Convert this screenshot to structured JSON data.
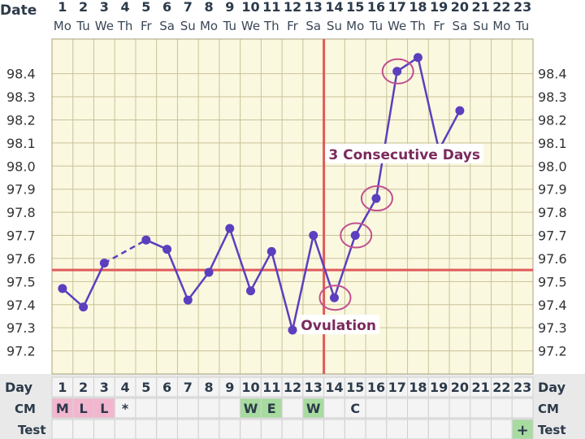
{
  "header": {
    "date_label": "Date",
    "day_label": "Day",
    "cm_label": "CM",
    "test_label": "Test"
  },
  "chart_data": {
    "type": "line",
    "title": "",
    "xlabel": "Day",
    "ylabel": "",
    "xlim": [
      1,
      23
    ],
    "ylim": [
      97.1,
      98.55
    ],
    "y_ticks": [
      97.2,
      97.3,
      97.4,
      97.5,
      97.6,
      97.7,
      97.8,
      97.9,
      98.0,
      98.1,
      98.2,
      98.3,
      98.4
    ],
    "y_tick_labels": [
      "97.2",
      "97.3",
      "97.4",
      "97.5",
      "97.6",
      "97.7",
      "97.8",
      "97.9",
      "98.0",
      "98.1",
      "98.2",
      "98.3",
      "98.4"
    ],
    "grid": true,
    "dates": [
      "1",
      "2",
      "3",
      "4",
      "5",
      "6",
      "7",
      "8",
      "9",
      "10",
      "11",
      "12",
      "13",
      "14",
      "15",
      "16",
      "17",
      "18",
      "19",
      "20",
      "21",
      "22",
      "23"
    ],
    "weekdays": [
      "Mo",
      "Tu",
      "We",
      "Th",
      "Fr",
      "Sa",
      "Su",
      "Mo",
      "Tu",
      "We",
      "Th",
      "Fr",
      "Sa",
      "Su",
      "Mo",
      "Tu",
      "We",
      "Th",
      "Fr",
      "Sa",
      "Su",
      "Mo",
      "Tu"
    ],
    "days": [
      1,
      2,
      3,
      4,
      5,
      6,
      7,
      8,
      9,
      10,
      11,
      12,
      13,
      14,
      15,
      16,
      17,
      18,
      19,
      20,
      21,
      22,
      23
    ],
    "series": [
      {
        "points": [
          {
            "day": 1,
            "temp": 97.47
          },
          {
            "day": 2,
            "temp": 97.39
          },
          {
            "day": 3,
            "temp": 97.58
          },
          {
            "day": 5,
            "temp": 97.68
          },
          {
            "day": 6,
            "temp": 97.64
          },
          {
            "day": 7,
            "temp": 97.42
          },
          {
            "day": 8,
            "temp": 97.54
          },
          {
            "day": 9,
            "temp": 97.73
          },
          {
            "day": 10,
            "temp": 97.46
          },
          {
            "day": 11,
            "temp": 97.63
          },
          {
            "day": 12,
            "temp": 97.29
          },
          {
            "day": 13,
            "temp": 97.7
          },
          {
            "day": 14,
            "temp": 97.43
          },
          {
            "day": 15,
            "temp": 97.7
          },
          {
            "day": 16,
            "temp": 97.86
          },
          {
            "day": 17,
            "temp": 98.41
          },
          {
            "day": 18,
            "temp": 98.47
          },
          {
            "day": 19,
            "temp": 98.07
          },
          {
            "day": 20,
            "temp": 98.24
          }
        ],
        "dashed_segments": [
          [
            3,
            5
          ]
        ],
        "color": "#5b3fbe"
      }
    ],
    "coverline": {
      "temp": 97.55,
      "color": "#e05a5a"
    },
    "ovulation_day": 14,
    "circled_days": [
      14,
      15,
      16,
      17
    ],
    "annotations": [
      {
        "text": "3 Consecutive Days",
        "day": 17.35,
        "temp": 98.04,
        "color": "#7b2a5c"
      },
      {
        "text": "Ovulation",
        "day": 14.2,
        "temp": 97.3,
        "color": "#7b2a5c"
      }
    ],
    "cm": [
      {
        "day": 1,
        "code": "M",
        "color": "#f2b6cf"
      },
      {
        "day": 2,
        "code": "L",
        "color": "#f2b6cf"
      },
      {
        "day": 3,
        "code": "L",
        "color": "#f2b6cf"
      },
      {
        "day": 4,
        "code": "*",
        "color": ""
      },
      {
        "day": 10,
        "code": "W",
        "color": "#a8dba0"
      },
      {
        "day": 11,
        "code": "E",
        "color": "#a8dba0"
      },
      {
        "day": 13,
        "code": "W",
        "color": "#a8dba0"
      },
      {
        "day": 15,
        "code": "C",
        "color": ""
      }
    ],
    "tests": [
      {
        "day": 23,
        "code": "+",
        "color": "#a8dba0"
      }
    ]
  }
}
